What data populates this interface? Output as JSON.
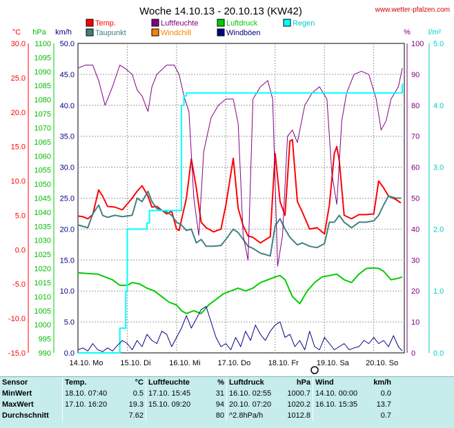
{
  "watermark": "www.wetter-pfalzen.com",
  "chart_data": {
    "type": "line",
    "title": "Woche 14.10.13 - 20.10.13 (KW42)",
    "axes": {
      "temp": {
        "unit": "°C",
        "color": "#ff0000",
        "range": [
          -15,
          30
        ],
        "ticks": [
          "30.0",
          "25.0",
          "20.0",
          "15.0",
          "10.0",
          "5.0",
          "0.0",
          "-5.0",
          "-10.0",
          "-15.0"
        ]
      },
      "pressure": {
        "unit": "hPa",
        "color": "#00bb00",
        "range": [
          990,
          1100
        ],
        "ticks": [
          "1100",
          "1095",
          "1090",
          "1085",
          "1080",
          "1075",
          "1070",
          "1065",
          "1060",
          "1055",
          "1050",
          "1045",
          "1040",
          "1035",
          "1030",
          "1025",
          "1020",
          "1015",
          "1010",
          "1005",
          "1000",
          "995",
          "990"
        ]
      },
      "wind": {
        "unit": "km/h",
        "color": "#000080",
        "range": [
          0,
          50
        ],
        "ticks": [
          "50.0",
          "45.0",
          "40.0",
          "35.0",
          "30.0",
          "25.0",
          "20.0",
          "15.0",
          "10.0",
          "5.0",
          "0.0"
        ]
      },
      "humidity": {
        "unit": "%",
        "color": "#800080",
        "range": [
          0,
          100
        ],
        "ticks": [
          "100",
          "90",
          "80",
          "70",
          "60",
          "50",
          "40",
          "30",
          "20",
          "10",
          "0"
        ]
      },
      "rain": {
        "unit": "l/m²",
        "color": "#00cccc",
        "range": [
          0,
          5
        ],
        "ticks": [
          "5.0",
          "4.0",
          "3.0",
          "2.0",
          "1.0",
          "0.0"
        ]
      }
    },
    "x_labels": [
      "14.10. Mo",
      "15.10. Di",
      "16.10. Mi",
      "17.10. Do",
      "18.10. Fr",
      "19.10. Sa",
      "20.10. So"
    ],
    "legend": [
      {
        "name": "Temp.",
        "color": "#ff0000"
      },
      {
        "name": "Luftfeuchte",
        "color": "#800080"
      },
      {
        "name": "Luftdruck",
        "color": "#00cc00"
      },
      {
        "name": "Regen",
        "color": "#00ffff"
      },
      {
        "name": "Taupunkt",
        "color": "#408080"
      },
      {
        "name": "Windchill",
        "color": "#ff8000"
      },
      {
        "name": "Windböen",
        "color": "#000080"
      }
    ],
    "grid": true,
    "series": [
      {
        "name": "Temp.",
        "axis": "temp",
        "color": "#ff0000",
        "width": 2,
        "x": [
          0,
          0.1,
          0.2,
          0.3,
          0.42,
          0.5,
          0.6,
          0.75,
          0.9,
          1.1,
          1.2,
          1.3,
          1.42,
          1.5,
          1.6,
          1.8,
          1.9,
          2.0,
          2.05,
          2.2,
          2.3,
          2.4,
          2.5,
          2.6,
          2.75,
          2.9,
          3.0,
          3.15,
          3.25,
          3.35,
          3.45,
          3.55,
          3.7,
          3.9,
          3.95,
          4.0,
          4.1,
          4.2,
          4.3,
          4.35,
          4.45,
          4.55,
          4.7,
          4.85,
          5.0,
          5.1,
          5.2,
          5.25,
          5.3,
          5.4,
          5.55,
          5.7,
          5.85,
          6.0,
          6.1,
          6.2,
          6.3,
          6.45,
          6.55
        ],
        "y": [
          4.9,
          4.8,
          4.5,
          5.1,
          8.7,
          7.8,
          6.3,
          6.2,
          5.8,
          7.5,
          8.5,
          9.3,
          7.8,
          6.2,
          6.3,
          5.2,
          5.6,
          3.0,
          2.8,
          7.5,
          13.2,
          9.0,
          4.0,
          3.2,
          2.6,
          3.0,
          6.5,
          13.3,
          6.0,
          3.5,
          2.0,
          1.8,
          1.0,
          1.9,
          8.0,
          14.0,
          7.0,
          5.0,
          15.8,
          16.0,
          7.0,
          5.5,
          3.0,
          3.2,
          2.3,
          6.5,
          14.0,
          15.0,
          13.0,
          5.0,
          4.5,
          5.1,
          5.1,
          5.2,
          10.0,
          9.0,
          7.8,
          7.3,
          6.8
        ]
      },
      {
        "name": "Taupunkt",
        "axis": "temp",
        "color": "#408080",
        "width": 2,
        "x": [
          0,
          0.1,
          0.2,
          0.3,
          0.42,
          0.5,
          0.6,
          0.75,
          0.9,
          1.1,
          1.2,
          1.3,
          1.42,
          1.5,
          1.6,
          1.8,
          1.9,
          2.0,
          2.1,
          2.2,
          2.3,
          2.4,
          2.5,
          2.6,
          2.75,
          2.9,
          3.0,
          3.15,
          3.25,
          3.35,
          3.45,
          3.55,
          3.7,
          3.9,
          4.0,
          4.1,
          4.2,
          4.3,
          4.45,
          4.55,
          4.7,
          4.85,
          5.0,
          5.1,
          5.2,
          5.3,
          5.4,
          5.55,
          5.7,
          5.85,
          6.0,
          6.1,
          6.2,
          6.3,
          6.45,
          6.55
        ],
        "y": [
          3.6,
          3.4,
          3.2,
          5.2,
          6.5,
          5.0,
          4.7,
          5.0,
          4.8,
          5.0,
          7.5,
          7.0,
          8.5,
          7.0,
          6.0,
          5.5,
          5.0,
          4.0,
          3.6,
          2.8,
          3.0,
          1.0,
          1.5,
          0.5,
          0.5,
          0.6,
          1.5,
          3.0,
          2.5,
          1.5,
          0.5,
          0.2,
          -0.5,
          -0.9,
          3.5,
          4.5,
          3.0,
          1.8,
          0.7,
          1.0,
          0.5,
          0.3,
          0.9,
          4.0,
          4.0,
          5.0,
          4.0,
          3.2,
          4.0,
          4.0,
          4.2,
          5.0,
          6.5,
          7.8,
          7.5,
          7.5
        ]
      },
      {
        "name": "Luftfeuchte",
        "axis": "humidity",
        "color": "#800080",
        "width": 1,
        "x": [
          0,
          0.15,
          0.3,
          0.42,
          0.55,
          0.7,
          0.85,
          0.95,
          1.1,
          1.2,
          1.3,
          1.42,
          1.5,
          1.6,
          1.8,
          1.95,
          2.05,
          2.15,
          2.25,
          2.35,
          2.45,
          2.55,
          2.7,
          2.85,
          3.0,
          3.15,
          3.25,
          3.35,
          3.45,
          3.55,
          3.7,
          3.85,
          3.95,
          4.05,
          4.15,
          4.25,
          4.35,
          4.45,
          4.6,
          4.75,
          4.9,
          5.05,
          5.15,
          5.25,
          5.35,
          5.45,
          5.6,
          5.75,
          5.9,
          6.05,
          6.15,
          6.25,
          6.35,
          6.5,
          6.58
        ],
        "y": [
          92,
          93,
          93,
          88,
          80,
          86,
          93,
          92,
          90,
          85,
          83,
          78,
          86,
          90,
          93,
          93,
          90,
          83,
          78,
          50,
          38,
          65,
          76,
          80,
          82,
          82,
          74,
          38,
          30,
          82,
          86,
          88,
          82,
          28,
          38,
          70,
          72,
          68,
          80,
          84,
          86,
          82,
          58,
          48,
          75,
          84,
          90,
          91,
          90,
          82,
          72,
          75,
          82,
          86,
          92
        ]
      },
      {
        "name": "Luftdruck",
        "axis": "pressure",
        "color": "#00cc00",
        "width": 2,
        "x": [
          0,
          0.2,
          0.4,
          0.55,
          0.7,
          0.85,
          1.0,
          1.1,
          1.25,
          1.4,
          1.55,
          1.7,
          1.85,
          2.0,
          2.1,
          2.2,
          2.35,
          2.5,
          2.65,
          2.8,
          2.95,
          3.1,
          3.25,
          3.4,
          3.55,
          3.7,
          3.85,
          4.0,
          4.1,
          4.2,
          4.35,
          4.5,
          4.65,
          4.8,
          4.95,
          5.1,
          5.25,
          5.4,
          5.55,
          5.7,
          5.85,
          6.0,
          6.1,
          6.2,
          6.35,
          6.5,
          6.58
        ],
        "y": [
          1018.5,
          1018.2,
          1018.0,
          1017.0,
          1016.0,
          1014.0,
          1014.0,
          1015.0,
          1014.5,
          1013.0,
          1012.0,
          1010.0,
          1008.0,
          1007.0,
          1005.0,
          1004.0,
          1005.0,
          1004.0,
          1007.0,
          1009.0,
          1011.0,
          1012.0,
          1013.0,
          1012.0,
          1013.0,
          1015.0,
          1016.0,
          1017.0,
          1017.5,
          1016.0,
          1010.0,
          1007.5,
          1012.0,
          1015.0,
          1017.0,
          1017.5,
          1018.0,
          1016.0,
          1015.0,
          1018.0,
          1020.0,
          1020.2,
          1020.0,
          1019.0,
          1016.0,
          1016.5,
          1017.0
        ]
      },
      {
        "name": "Regen",
        "axis": "rain",
        "color": "#00ffff",
        "width": 2,
        "step": true,
        "x": [
          0,
          0.7,
          0.85,
          0.97,
          1.0,
          1.4,
          1.45,
          2.05,
          2.1,
          2.15,
          2.2,
          6.58
        ],
        "y": [
          0,
          0,
          0.4,
          1.0,
          2.0,
          2.1,
          2.3,
          2.3,
          4.0,
          4.15,
          4.2,
          4.35
        ]
      },
      {
        "name": "Windböen",
        "axis": "wind",
        "color": "#000080",
        "width": 1,
        "x": [
          0,
          0.1,
          0.2,
          0.3,
          0.4,
          0.5,
          0.6,
          0.7,
          0.8,
          0.9,
          1.0,
          1.1,
          1.2,
          1.3,
          1.4,
          1.5,
          1.6,
          1.7,
          1.8,
          1.9,
          2.0,
          2.1,
          2.2,
          2.3,
          2.4,
          2.5,
          2.6,
          2.7,
          2.8,
          2.9,
          3.0,
          3.1,
          3.2,
          3.3,
          3.4,
          3.5,
          3.6,
          3.7,
          3.8,
          3.9,
          4.0,
          4.1,
          4.2,
          4.3,
          4.4,
          4.5,
          4.6,
          4.7,
          4.8,
          4.9,
          5.0,
          5.1,
          5.2,
          5.3,
          5.4,
          5.5,
          5.6,
          5.7,
          5.8,
          5.9,
          6.0,
          6.1,
          6.2,
          6.3,
          6.4,
          6.5,
          6.58
        ],
        "y": [
          0.5,
          0.8,
          0.3,
          1.5,
          0.5,
          0.2,
          0.8,
          0.3,
          1.2,
          2.0,
          1.5,
          0.5,
          2.0,
          1.0,
          3.0,
          2.0,
          1.5,
          3.5,
          3.0,
          1.0,
          2.5,
          4.0,
          6.0,
          4.0,
          5.5,
          7.0,
          7.5,
          5.0,
          2.5,
          1.0,
          1.5,
          0.5,
          2.5,
          1.0,
          3.5,
          2.0,
          4.5,
          3.0,
          2.0,
          3.5,
          4.5,
          5.0,
          2.5,
          3.0,
          1.0,
          2.0,
          0.5,
          3.5,
          1.0,
          0.5,
          2.5,
          1.5,
          0.5,
          1.0,
          1.5,
          0.5,
          0.8,
          1.0,
          2.0,
          1.5,
          2.5,
          1.5,
          2.0,
          1.0,
          2.8,
          1.0,
          0.3
        ]
      }
    ]
  },
  "stats": {
    "headers": {
      "sensor": "Sensor",
      "temp": "Temp.",
      "temp_unit": "°C",
      "hum": "Luftfeuchte",
      "hum_unit": "%",
      "press": "Luftdruck",
      "press_unit": "hPa",
      "wind": "Wind",
      "wind_unit": "km/h"
    },
    "rows": [
      {
        "label": "MinWert",
        "temp_time": "18.10.  07:40",
        "temp_val": "0.5",
        "hum_time": "17.10.  15:45",
        "hum_val": "31",
        "press_time": "16.10.  02:55",
        "press_val": "1000.7",
        "wind_time": "14.10.  00:00",
        "wind_val": "0.0"
      },
      {
        "label": "MaxWert",
        "temp_time": "17.10.  16:20",
        "temp_val": "19.3",
        "hum_time": "15.10.  09:20",
        "hum_val": "94",
        "press_time": "20.10.  07:20",
        "press_val": "1020.2",
        "wind_time": "16.10.  15:35",
        "wind_val": "13.7"
      },
      {
        "label": "Durchschnitt",
        "temp_time": "",
        "temp_val": "7.62",
        "hum_time": "",
        "hum_val": "80",
        "press_time": "^2.8hPa/h",
        "press_val": "1012.8",
        "wind_time": "",
        "wind_val": "0.7"
      }
    ]
  }
}
